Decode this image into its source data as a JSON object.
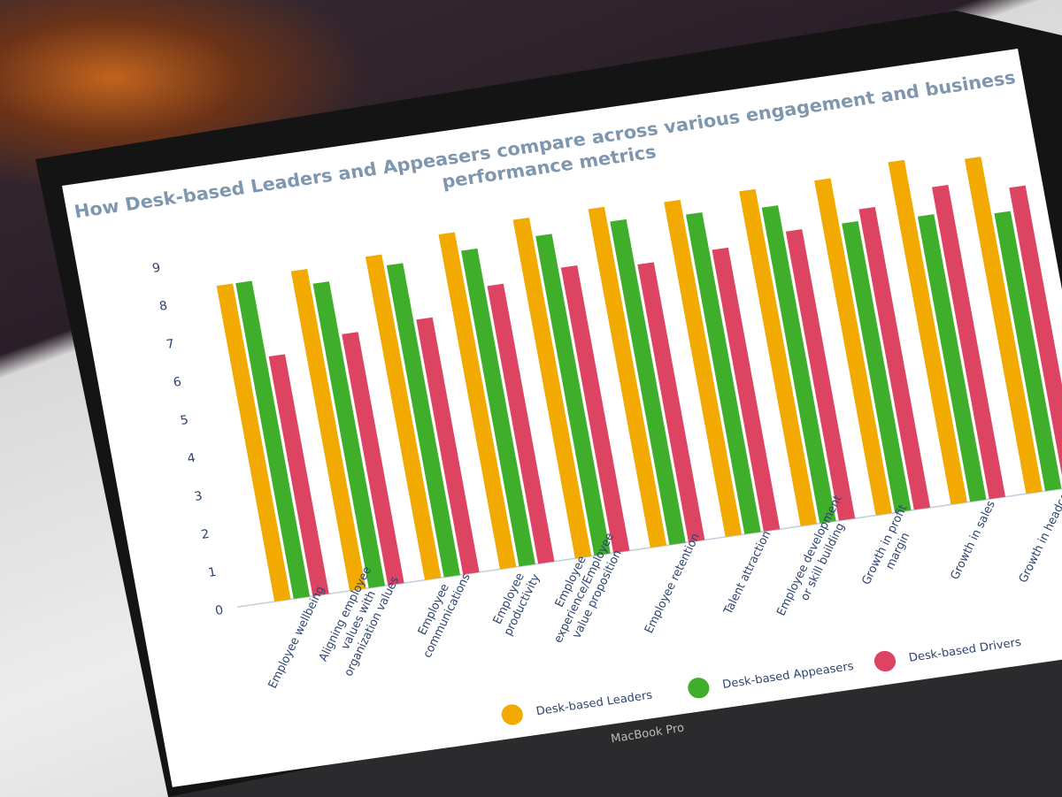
{
  "device": {
    "brand_label": "MacBook Pro"
  },
  "chart_data": {
    "type": "bar",
    "title": "How Desk-based Leaders and Appeasers compare across various engagement and business performance metrics",
    "xlabel": "",
    "ylabel": "",
    "ylim": [
      0,
      9
    ],
    "yticks": [
      "0",
      "1",
      "2",
      "3",
      "4",
      "5",
      "6",
      "7",
      "8",
      "9"
    ],
    "grid": false,
    "legend_position": "bottom",
    "categories": [
      "Employee wellbeing",
      "Aligning employee values with organization values",
      "Employee communications",
      "Employee productivity",
      "Employee experience/Employee value proposition",
      "Employee retention",
      "Talent attraction",
      "Employee development or skill building",
      "Growth in profit margin",
      "Growth in sales",
      "Growth in headcount"
    ],
    "series": [
      {
        "name": "Desk-based Leaders",
        "color": "#f2a900",
        "values": [
          8.3,
          8.4,
          8.5,
          8.8,
          8.9,
          8.9,
          8.8,
          8.8,
          8.8,
          9.0,
          8.8
        ]
      },
      {
        "name": "Desk-based Appeasers",
        "color": "#3fae2a",
        "values": [
          8.3,
          8.0,
          8.2,
          8.3,
          8.4,
          8.5,
          8.4,
          8.3,
          7.6,
          7.5,
          7.3
        ]
      },
      {
        "name": "Desk-based Drivers",
        "color": "#dc4462",
        "values": [
          6.3,
          6.6,
          6.7,
          7.3,
          7.5,
          7.3,
          7.4,
          7.6,
          7.9,
          8.2,
          7.9
        ]
      }
    ]
  }
}
